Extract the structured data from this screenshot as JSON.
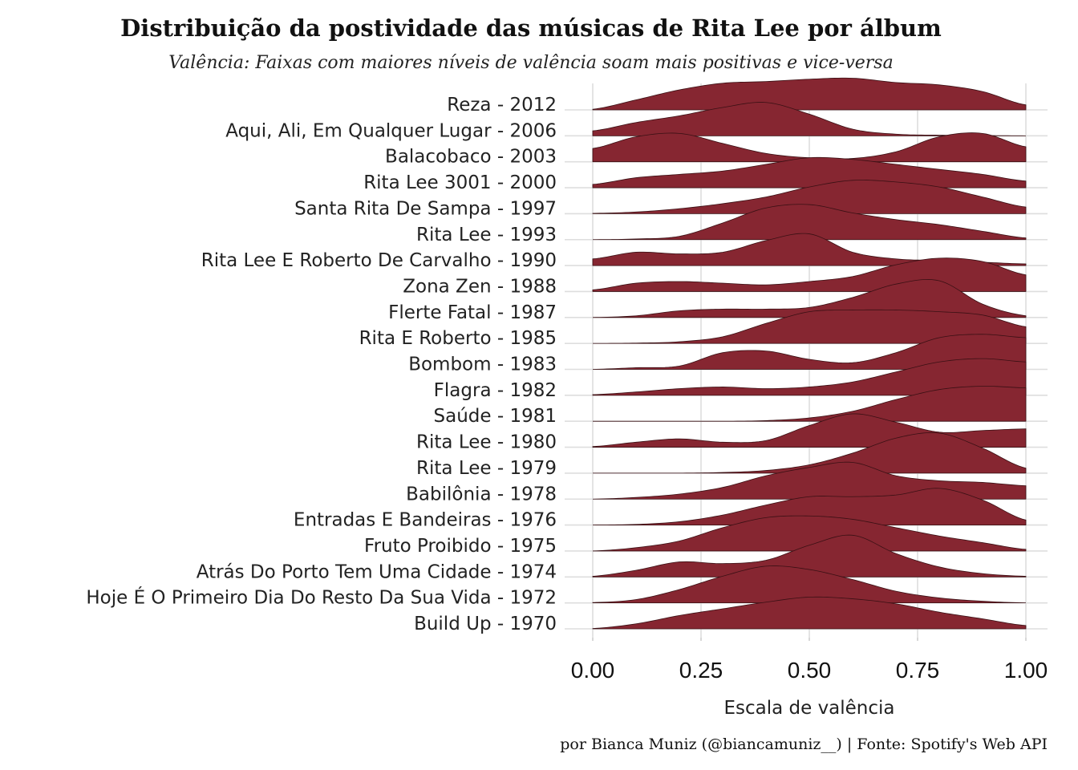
{
  "chart_data": {
    "type": "ridgeline",
    "title": "Distribuição da postividade das músicas de Rita Lee por álbum",
    "subtitle": "Valência: Faixas com maiores níveis de valência soam mais positivas e vice-versa",
    "xlabel": "Escala de valência",
    "ylabel": "",
    "xlim": [
      0,
      1
    ],
    "x_ticks": [
      "0.00",
      "0.25",
      "0.50",
      "0.75",
      "1.00"
    ],
    "grid": true,
    "caption": "por Bianca Muniz (@biancamuniz__) | Fonte: Spotify's Web API",
    "fill_color": "#862631",
    "density_x": [
      0,
      0.1,
      0.2,
      0.3,
      0.4,
      0.5,
      0.6,
      0.7,
      0.8,
      0.9,
      1.0
    ],
    "series": [
      {
        "name": "Reza - 2012",
        "density": [
          0.02,
          0.3,
          0.6,
          0.8,
          0.85,
          0.92,
          0.95,
          0.82,
          0.75,
          0.55,
          0.15
        ]
      },
      {
        "name": "Aqui, Ali, Em Qualquer Lugar - 2006",
        "density": [
          0.15,
          0.4,
          0.6,
          0.85,
          1.0,
          0.65,
          0.2,
          0.05,
          0.02,
          0.01,
          0.0
        ]
      },
      {
        "name": "Balacobaco - 2003",
        "density": [
          0.4,
          0.75,
          0.85,
          0.55,
          0.25,
          0.12,
          0.1,
          0.3,
          0.75,
          0.85,
          0.45
        ]
      },
      {
        "name": "Rita Lee 3001 - 2000",
        "density": [
          0.1,
          0.3,
          0.4,
          0.5,
          0.7,
          0.9,
          0.85,
          0.7,
          0.55,
          0.4,
          0.2
        ]
      },
      {
        "name": "Santa Rita De Sampa - 1997",
        "density": [
          0.01,
          0.05,
          0.15,
          0.3,
          0.5,
          0.8,
          1.0,
          0.95,
          0.8,
          0.5,
          0.2
        ]
      },
      {
        "name": "Rita Lee - 1993",
        "density": [
          0.0,
          0.02,
          0.1,
          0.5,
          0.95,
          1.05,
          0.8,
          0.6,
          0.45,
          0.25,
          0.05
        ]
      },
      {
        "name": "Rita Lee E Roberto De Carvalho - 1990",
        "density": [
          0.2,
          0.4,
          0.35,
          0.4,
          0.75,
          0.95,
          0.4,
          0.2,
          0.15,
          0.1,
          0.05
        ]
      },
      {
        "name": "Zona Zen - 1988",
        "density": [
          0.05,
          0.25,
          0.3,
          0.25,
          0.2,
          0.3,
          0.45,
          0.8,
          1.0,
          0.9,
          0.5
        ]
      },
      {
        "name": "Flerte Fatal - 1987",
        "density": [
          0.0,
          0.05,
          0.2,
          0.25,
          0.25,
          0.3,
          0.6,
          1.0,
          1.1,
          0.4,
          0.05
        ]
      },
      {
        "name": "Rita E Roberto - 1985",
        "density": [
          0.0,
          0.01,
          0.05,
          0.2,
          0.6,
          0.95,
          1.0,
          1.0,
          0.95,
          0.85,
          0.5
        ]
      },
      {
        "name": "Bombom - 1983",
        "density": [
          0.0,
          0.05,
          0.1,
          0.5,
          0.55,
          0.3,
          0.2,
          0.5,
          0.95,
          1.05,
          0.95
        ]
      },
      {
        "name": "Flagra - 1982",
        "density": [
          0.02,
          0.1,
          0.2,
          0.25,
          0.2,
          0.25,
          0.4,
          0.7,
          1.0,
          1.1,
          1.0
        ]
      },
      {
        "name": "Saúde - 1981",
        "density": [
          0.0,
          0.0,
          0.0,
          0.0,
          0.02,
          0.1,
          0.3,
          0.65,
          0.95,
          1.05,
          1.0
        ]
      },
      {
        "name": "Rita Lee - 1980",
        "density": [
          0.02,
          0.15,
          0.25,
          0.15,
          0.2,
          0.65,
          1.0,
          0.75,
          0.45,
          0.5,
          0.55
        ]
      },
      {
        "name": "Rita Lee - 1979",
        "density": [
          0.0,
          0.0,
          0.0,
          0.02,
          0.08,
          0.25,
          0.6,
          1.05,
          1.2,
          0.75,
          0.15
        ]
      },
      {
        "name": "Babilônia - 1978",
        "density": [
          0.0,
          0.05,
          0.15,
          0.35,
          0.7,
          0.95,
          1.1,
          0.7,
          0.55,
          0.5,
          0.4
        ]
      },
      {
        "name": "Entradas E Bandeiras - 1976",
        "density": [
          0.0,
          0.02,
          0.1,
          0.3,
          0.6,
          0.85,
          0.85,
          0.9,
          1.1,
          0.75,
          0.15
        ]
      },
      {
        "name": "Fruto Proibido - 1975",
        "density": [
          0.0,
          0.1,
          0.3,
          0.7,
          1.0,
          1.05,
          0.95,
          0.7,
          0.45,
          0.25,
          0.05
        ]
      },
      {
        "name": "Atrás Do Porto Tem Uma Cidade - 1974",
        "density": [
          0.02,
          0.2,
          0.45,
          0.4,
          0.5,
          0.95,
          1.25,
          0.7,
          0.3,
          0.1,
          0.02
        ]
      },
      {
        "name": "Hoje É O Primeiro Dia Do Resto Da Sua Vida - 1972",
        "density": [
          0.01,
          0.1,
          0.4,
          0.8,
          1.1,
          1.0,
          0.7,
          0.35,
          0.15,
          0.05,
          0.0
        ]
      },
      {
        "name": "Build Up - 1970",
        "density": [
          0.01,
          0.15,
          0.4,
          0.6,
          0.8,
          0.95,
          0.9,
          0.75,
          0.5,
          0.3,
          0.1
        ]
      }
    ]
  }
}
